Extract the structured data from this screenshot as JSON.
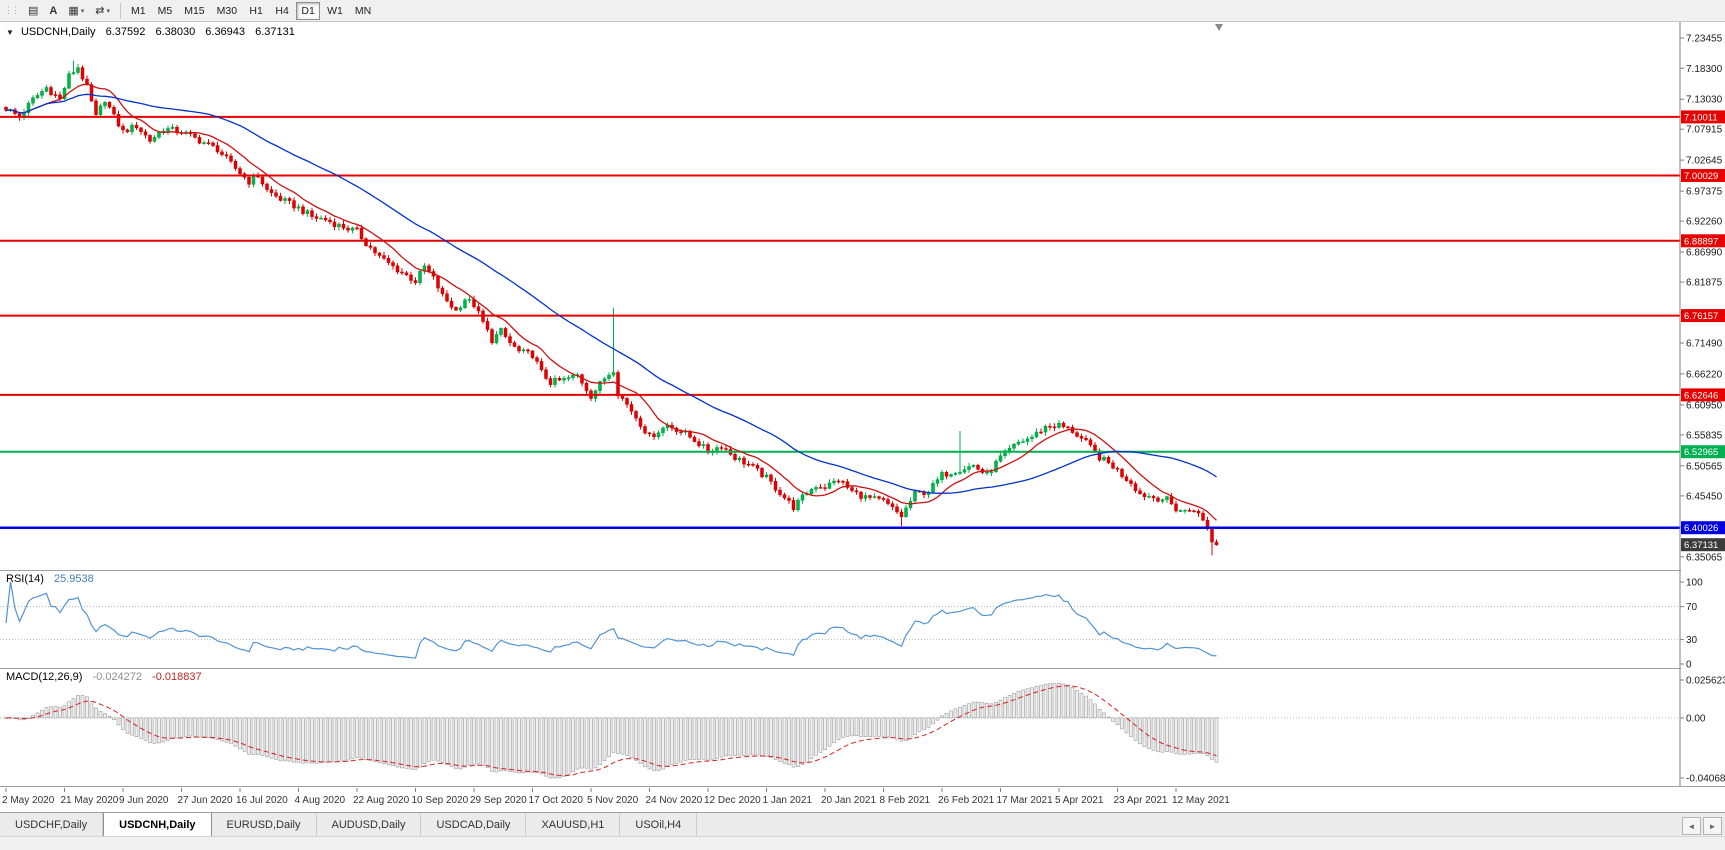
{
  "toolbar": {
    "handle_icon": "⋮⋮",
    "tool_icons": [
      {
        "name": "charts-grid-icon",
        "glyph": "▤",
        "dropdown": ""
      },
      {
        "name": "text-annotation-icon",
        "glyph": "A",
        "dropdown": ""
      },
      {
        "name": "chart-template-icon",
        "glyph": "▦",
        "dropdown": "▾"
      },
      {
        "name": "arrows-tool-icon",
        "glyph": "⇄",
        "dropdown": "▾"
      }
    ],
    "timeframes": [
      "M1",
      "M5",
      "M15",
      "M30",
      "H1",
      "H4",
      "D1",
      "W1",
      "MN"
    ],
    "active_timeframe": "D1"
  },
  "chart": {
    "symbol_header": {
      "arrow": "▼",
      "symbol": "USDCNH,Daily",
      "open": "6.37592",
      "high": "6.38030",
      "low": "6.36943",
      "close": "6.37131"
    },
    "price_axis_ticks": [
      "7.23455",
      "7.18300",
      "7.13030",
      "7.07915",
      "7.02645",
      "6.97375",
      "6.92260",
      "6.86990",
      "6.81875",
      "6.76605",
      "6.71490",
      "6.66220",
      "6.60950",
      "6.55835",
      "6.50565",
      "6.45450",
      "6.40180",
      "6.35065"
    ],
    "hlines": [
      {
        "label": "7.10011",
        "price": 7.10011,
        "color": "#e60000",
        "width": 2
      },
      {
        "label": "7.00029",
        "price": 7.00029,
        "color": "#e60000",
        "width": 2
      },
      {
        "label": "6.88897",
        "price": 6.88897,
        "color": "#e60000",
        "width": 2
      },
      {
        "label": "6.76157",
        "price": 6.76157,
        "color": "#e60000",
        "width": 2
      },
      {
        "label": "6.62646",
        "price": 6.62646,
        "color": "#e60000",
        "width": 2
      },
      {
        "label": "6.52965",
        "price": 6.52965,
        "color": "#00b050",
        "width": 2
      },
      {
        "label": "6.40026",
        "price": 6.40026,
        "color": "#0000e0",
        "width": 2.5
      }
    ],
    "current_price": {
      "label": "6.37131",
      "price": 6.37131,
      "bg": "#3c3c3c"
    }
  },
  "chart_data": {
    "type": "candlestick",
    "symbol": "USDCNH",
    "period": "Daily",
    "ohlc_current": {
      "open": 6.37592,
      "high": 6.3803,
      "low": 6.36943,
      "close": 6.37131
    },
    "y_range": {
      "top": 7.255,
      "bottom": 6.335
    },
    "x_labels": [
      "2 May 2020",
      "21 May 2020",
      "9 Jun 2020",
      "27 Jun 2020",
      "16 Jul 2020",
      "4 Aug 2020",
      "22 Aug 2020",
      "10 Sep 2020",
      "29 Sep 2020",
      "17 Oct 2020",
      "5 Nov 2020",
      "24 Nov 2020",
      "12 Dec 2020",
      "1 Jan 2021",
      "20 Jan 2021",
      "8 Feb 2021",
      "26 Feb 2021",
      "17 Mar 2021",
      "5 Apr 2021",
      "23 Apr 2021",
      "12 May 2021"
    ],
    "bars_per_label": 13,
    "bar_count": 270,
    "close_keyframes": [
      [
        0,
        7.115
      ],
      [
        3,
        7.1
      ],
      [
        6,
        7.13
      ],
      [
        9,
        7.15
      ],
      [
        12,
        7.13
      ],
      [
        14,
        7.17
      ],
      [
        16,
        7.185
      ],
      [
        18,
        7.15
      ],
      [
        20,
        7.1
      ],
      [
        22,
        7.13
      ],
      [
        24,
        7.1
      ],
      [
        26,
        7.075
      ],
      [
        29,
        7.085
      ],
      [
        32,
        7.06
      ],
      [
        35,
        7.08
      ],
      [
        39,
        7.075
      ],
      [
        43,
        7.06
      ],
      [
        47,
        7.045
      ],
      [
        50,
        7.02
      ],
      [
        52,
        7.005
      ],
      [
        54,
        6.99
      ],
      [
        56,
        7.0
      ],
      [
        58,
        6.975
      ],
      [
        61,
        6.96
      ],
      [
        65,
        6.945
      ],
      [
        68,
        6.93
      ],
      [
        71,
        6.925
      ],
      [
        74,
        6.915
      ],
      [
        78,
        6.905
      ],
      [
        80,
        6.885
      ],
      [
        83,
        6.862
      ],
      [
        86,
        6.845
      ],
      [
        89,
        6.83
      ],
      [
        91,
        6.82
      ],
      [
        93,
        6.845
      ],
      [
        95,
        6.825
      ],
      [
        97,
        6.795
      ],
      [
        100,
        6.77
      ],
      [
        102,
        6.79
      ],
      [
        104,
        6.78
      ],
      [
        106,
        6.75
      ],
      [
        108,
        6.72
      ],
      [
        110,
        6.735
      ],
      [
        112,
        6.715
      ],
      [
        114,
        6.7
      ],
      [
        117,
        6.695
      ],
      [
        119,
        6.665
      ],
      [
        121,
        6.648
      ],
      [
        124,
        6.652
      ],
      [
        127,
        6.66
      ],
      [
        130,
        6.625
      ],
      [
        133,
        6.655
      ],
      [
        135,
        6.67
      ],
      [
        136,
        6.63
      ],
      [
        139,
        6.6
      ],
      [
        143,
        6.555
      ],
      [
        147,
        6.575
      ],
      [
        150,
        6.565
      ],
      [
        153,
        6.55
      ],
      [
        156,
        6.53
      ],
      [
        159,
        6.54
      ],
      [
        162,
        6.52
      ],
      [
        165,
        6.508
      ],
      [
        169,
        6.485
      ],
      [
        172,
        6.46
      ],
      [
        175,
        6.435
      ],
      [
        178,
        6.46
      ],
      [
        180,
        6.472
      ],
      [
        182,
        6.47
      ],
      [
        185,
        6.482
      ],
      [
        188,
        6.462
      ],
      [
        191,
        6.452
      ],
      [
        195,
        6.445
      ],
      [
        199,
        6.42
      ],
      [
        202,
        6.458
      ],
      [
        205,
        6.462
      ],
      [
        208,
        6.49
      ],
      [
        212,
        6.5
      ],
      [
        215,
        6.506
      ],
      [
        218,
        6.49
      ],
      [
        221,
        6.52
      ],
      [
        225,
        6.545
      ],
      [
        228,
        6.555
      ],
      [
        231,
        6.572
      ],
      [
        234,
        6.575
      ],
      [
        237,
        6.565
      ],
      [
        240,
        6.545
      ],
      [
        243,
        6.52
      ],
      [
        246,
        6.505
      ],
      [
        248,
        6.49
      ],
      [
        250,
        6.478
      ],
      [
        252,
        6.458
      ],
      [
        255,
        6.452
      ],
      [
        258,
        6.448
      ],
      [
        260,
        6.432
      ],
      [
        262,
        6.428
      ],
      [
        264,
        6.432
      ],
      [
        266,
        6.413
      ],
      [
        267,
        6.398
      ],
      [
        268,
        6.3759
      ],
      [
        269,
        6.3713
      ]
    ],
    "spikes": [
      {
        "i": 15,
        "high": 7.196
      },
      {
        "i": 135,
        "high": 6.775
      },
      {
        "i": 199,
        "low": 6.403
      },
      {
        "i": 212,
        "high": 6.565
      },
      {
        "i": 268,
        "low": 6.353
      },
      {
        "i": 269,
        "high": 6.3803,
        "low": 6.3694
      }
    ],
    "up_color": "#00b64a",
    "up_stroke": "#009a3c",
    "down_color": "#e60000",
    "down_stroke": "#c40000",
    "moving_averages": [
      {
        "name": "fast-ma",
        "period": 10,
        "color": "#cc1111"
      },
      {
        "name": "slow-ma",
        "period": 40,
        "color": "#0033cc"
      }
    ]
  },
  "rsi": {
    "label": "RSI(14)",
    "value": "25.9538",
    "color": "#4f94d6",
    "scale": [
      {
        "label": "100",
        "value": 100
      },
      {
        "label": "70",
        "value": 70
      },
      {
        "label": "30",
        "value": 30
      },
      {
        "label": "0",
        "value": 0
      }
    ],
    "level_lines": [
      70,
      30
    ]
  },
  "macd": {
    "label": "MACD(12,26,9)",
    "value_main": "-0.024272",
    "value_signal": "-0.018837",
    "fast": 12,
    "slow": 26,
    "signal": 9,
    "bar_fill": "#efefef",
    "bar_stroke": "#9a9a9a",
    "signal_color": "#d92020",
    "scale": [
      {
        "label": "0.025623",
        "value": 0.025623
      },
      {
        "label": "0.00",
        "value": 0
      },
      {
        "label": "-0.04068",
        "value": -0.04068
      }
    ]
  },
  "tabs": {
    "items": [
      {
        "label": "USDCHF,Daily",
        "active": false
      },
      {
        "label": "USDCNH,Daily",
        "active": true
      },
      {
        "label": "EURUSD,Daily",
        "active": false
      },
      {
        "label": "AUDUSD,Daily",
        "active": false
      },
      {
        "label": "USDCAD,Daily",
        "active": false
      },
      {
        "label": "XAUUSD,H1",
        "active": false
      },
      {
        "label": "USOil,H4",
        "active": false
      }
    ],
    "scroll_left_icon": "◄",
    "scroll_right_icon": "►"
  }
}
